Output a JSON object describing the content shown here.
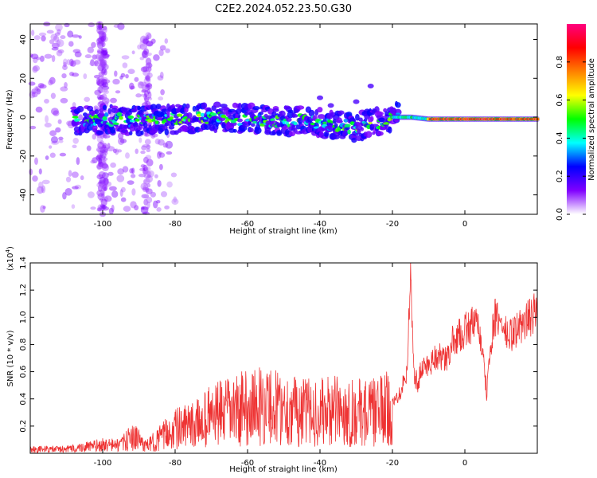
{
  "title": "C2E2.2024.052.23.50.G30",
  "chart_data": [
    {
      "type": "heatmap",
      "xlabel": "Height of straight line (km)",
      "ylabel": "Frequency (Hz)",
      "xlim": [
        -120,
        20
      ],
      "ylim": [
        -50,
        48
      ],
      "xticks": [
        -100,
        -80,
        -60,
        -40,
        -20,
        0
      ],
      "yticks": [
        -40,
        -20,
        0,
        20,
        40
      ],
      "ridge": {
        "x": [
          -107,
          -100,
          -90,
          -80,
          -70,
          -60,
          -50,
          -45,
          -40,
          -35,
          -30,
          -25,
          -22,
          -20,
          -15,
          -10,
          -5,
          0,
          5,
          10,
          18
        ],
        "y": [
          -2,
          -1,
          -2,
          -1,
          0,
          -1,
          -2,
          -1,
          -3,
          -4,
          -5,
          -3,
          -2,
          0,
          0,
          -1,
          -1,
          -1,
          -1,
          -1,
          -1
        ]
      },
      "colorbar": {
        "label": "Normalized spectral amplitude",
        "ticks": [
          "0.0",
          "0.2",
          "0.4",
          "0.6",
          "0.8"
        ],
        "range": [
          0,
          1
        ],
        "colors": [
          "#ffffff",
          "#8000ff",
          "#0000ff",
          "#00ffff",
          "#00ff00",
          "#ffff00",
          "#ff8000",
          "#ff0000",
          "#ff0080"
        ]
      }
    },
    {
      "type": "line",
      "xlabel": "Height of straight line (km)",
      "ylabel": "SNR (10 * v/v)",
      "scale_label": "(x10",
      "scale_exp": "4",
      "scale_close": ")",
      "xlim": [
        -120,
        20
      ],
      "ylim": [
        0,
        1.4
      ],
      "xticks": [
        -100,
        -80,
        -60,
        -40,
        -20,
        0
      ],
      "yticks": [
        "0.2",
        "0.4",
        "0.6",
        "0.8",
        "1.0",
        "1.2",
        "1.4"
      ],
      "line_color": "#ee3333",
      "series": [
        {
          "x": [
            -120,
            -110,
            -100,
            -95,
            -92,
            -90,
            -88,
            -85,
            -80,
            -75,
            -70,
            -65,
            -60,
            -55,
            -50,
            -45,
            -40,
            -35,
            -30,
            -25,
            -22,
            -20,
            -18,
            -16,
            -15,
            -14,
            -13,
            -12,
            -10,
            -8,
            -5,
            -3,
            -2,
            0,
            2,
            4,
            6,
            8,
            10,
            12,
            14,
            16,
            18,
            20
          ],
          "y": [
            0.03,
            0.03,
            0.06,
            0.06,
            0.12,
            0.1,
            0.05,
            0.1,
            0.18,
            0.2,
            0.28,
            0.3,
            0.34,
            0.35,
            0.33,
            0.3,
            0.3,
            0.31,
            0.3,
            0.3,
            0.32,
            0.35,
            0.45,
            0.6,
            1.3,
            0.6,
            0.5,
            0.62,
            0.65,
            0.72,
            0.68,
            0.85,
            0.85,
            0.9,
            0.95,
            0.92,
            0.45,
            1.0,
            0.95,
            0.85,
            0.9,
            0.95,
            1.0,
            1.05
          ]
        }
      ]
    }
  ]
}
